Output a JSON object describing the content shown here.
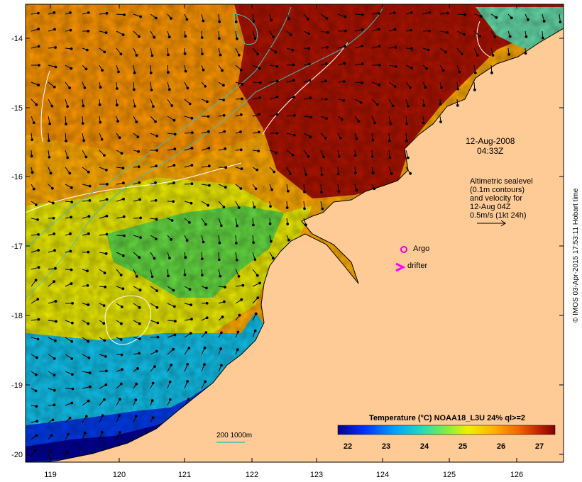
{
  "map": {
    "timestamp": "12-Aug-2008\n04:33Z",
    "altimetry_note": "Altimetric sealevel\n(0.1m contours)\nand velocity for\n12-Aug 04Z",
    "velocity_scale_label": "0.5m/s (1kt 24h)",
    "legend_argo": "Argo",
    "legend_drifter": "drifter",
    "bathymetry_label": "200 1000m",
    "colorbar_title": "Temperature (°C) NOAA18_L3U 24% ql>=2",
    "colorbar_ticks": [
      "22",
      "23",
      "24",
      "25",
      "26",
      "27"
    ],
    "credit": "© IMOS 03-Apr-2015 17:53:11 Hobart time",
    "lat_ticks": [
      "-14",
      "-15",
      "-16",
      "-17",
      "-18",
      "-19",
      "-20"
    ],
    "lon_ticks": [
      "119",
      "120",
      "121",
      "122",
      "123",
      "124",
      "125",
      "126"
    ],
    "colors": {
      "land": "#fecb97",
      "sst_cold": "#00008f",
      "sst_warm": "#8b0000",
      "argo_marker": "#e000e0",
      "bathy_contour": "#40c0c0"
    },
    "colorbar_range": [
      21.6,
      27.4
    ]
  }
}
